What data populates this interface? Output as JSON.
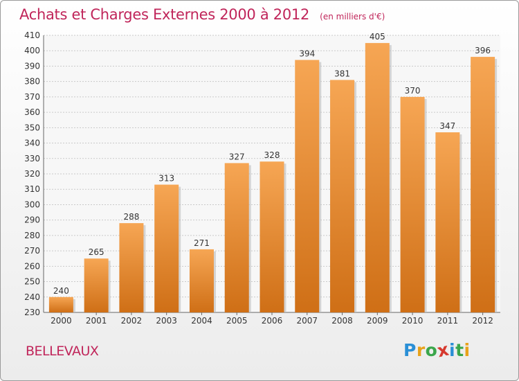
{
  "header": {
    "title": "Achats et Charges Externes 2000 à 2012",
    "subtitle": "(en milliers d'€)"
  },
  "footer": {
    "place": "BELLEVAUX",
    "brand": "Proxiti"
  },
  "colors": {
    "accent": "#c0255a",
    "bar_top": "#f6a654",
    "bar_bottom": "#cf6f16",
    "grid": "#c9c9c9"
  },
  "chart_data": {
    "type": "bar",
    "title": "Achats et Charges Externes 2000 à 2012",
    "subtitle": "(en milliers d'€)",
    "categories": [
      "2000",
      "2001",
      "2002",
      "2003",
      "2004",
      "2005",
      "2006",
      "2007",
      "2008",
      "2009",
      "2010",
      "2011",
      "2012"
    ],
    "values": [
      240,
      265,
      288,
      313,
      271,
      327,
      328,
      394,
      381,
      405,
      370,
      347,
      396
    ],
    "ylim": [
      230,
      410
    ],
    "yticks": [
      230,
      240,
      250,
      260,
      270,
      280,
      290,
      300,
      310,
      320,
      330,
      340,
      350,
      360,
      370,
      380,
      390,
      400,
      410
    ],
    "grid": true,
    "data_labels": true
  }
}
